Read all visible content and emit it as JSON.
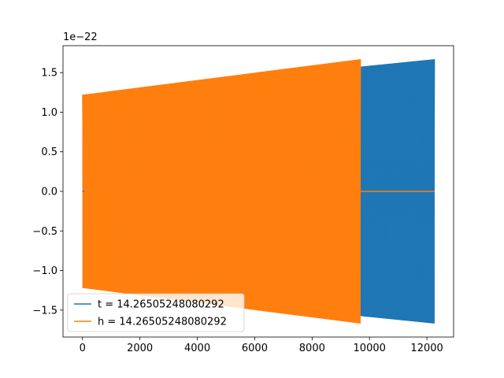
{
  "chart_data": {
    "type": "line",
    "y_offset_label": "1e−22",
    "xlim": [
      -680,
      12930
    ],
    "ylim": [
      -1.84,
      1.84
    ],
    "x_ticks": [
      0,
      2000,
      4000,
      6000,
      8000,
      10000,
      12000
    ],
    "x_tick_labels": [
      "0",
      "2000",
      "4000",
      "6000",
      "8000",
      "10000",
      "12000"
    ],
    "y_ticks": [
      -1.5,
      -1.0,
      -0.5,
      0.0,
      0.5,
      1.0,
      1.5
    ],
    "y_tick_labels": [
      "−1.5",
      "−1.0",
      "−0.5",
      "0.0",
      "0.5",
      "1.0",
      "1.5"
    ],
    "grid": false,
    "legend_position": "lower-left",
    "series": [
      {
        "name": "t = 14.26505248080292",
        "color": "#1f77b4",
        "x_start": 0,
        "x_end": 12270,
        "amplitude_start": 1.22,
        "amplitude_end": 1.67,
        "baseline": 0.0
      },
      {
        "name": "h = 14.26505248080292",
        "color": "#ff7f0e",
        "x_start": 0,
        "x_end": 9690,
        "amplitude_start": 1.22,
        "amplitude_end": 1.67,
        "flat_after": 9690,
        "flat_until": 12270,
        "baseline": 0.0
      }
    ]
  }
}
